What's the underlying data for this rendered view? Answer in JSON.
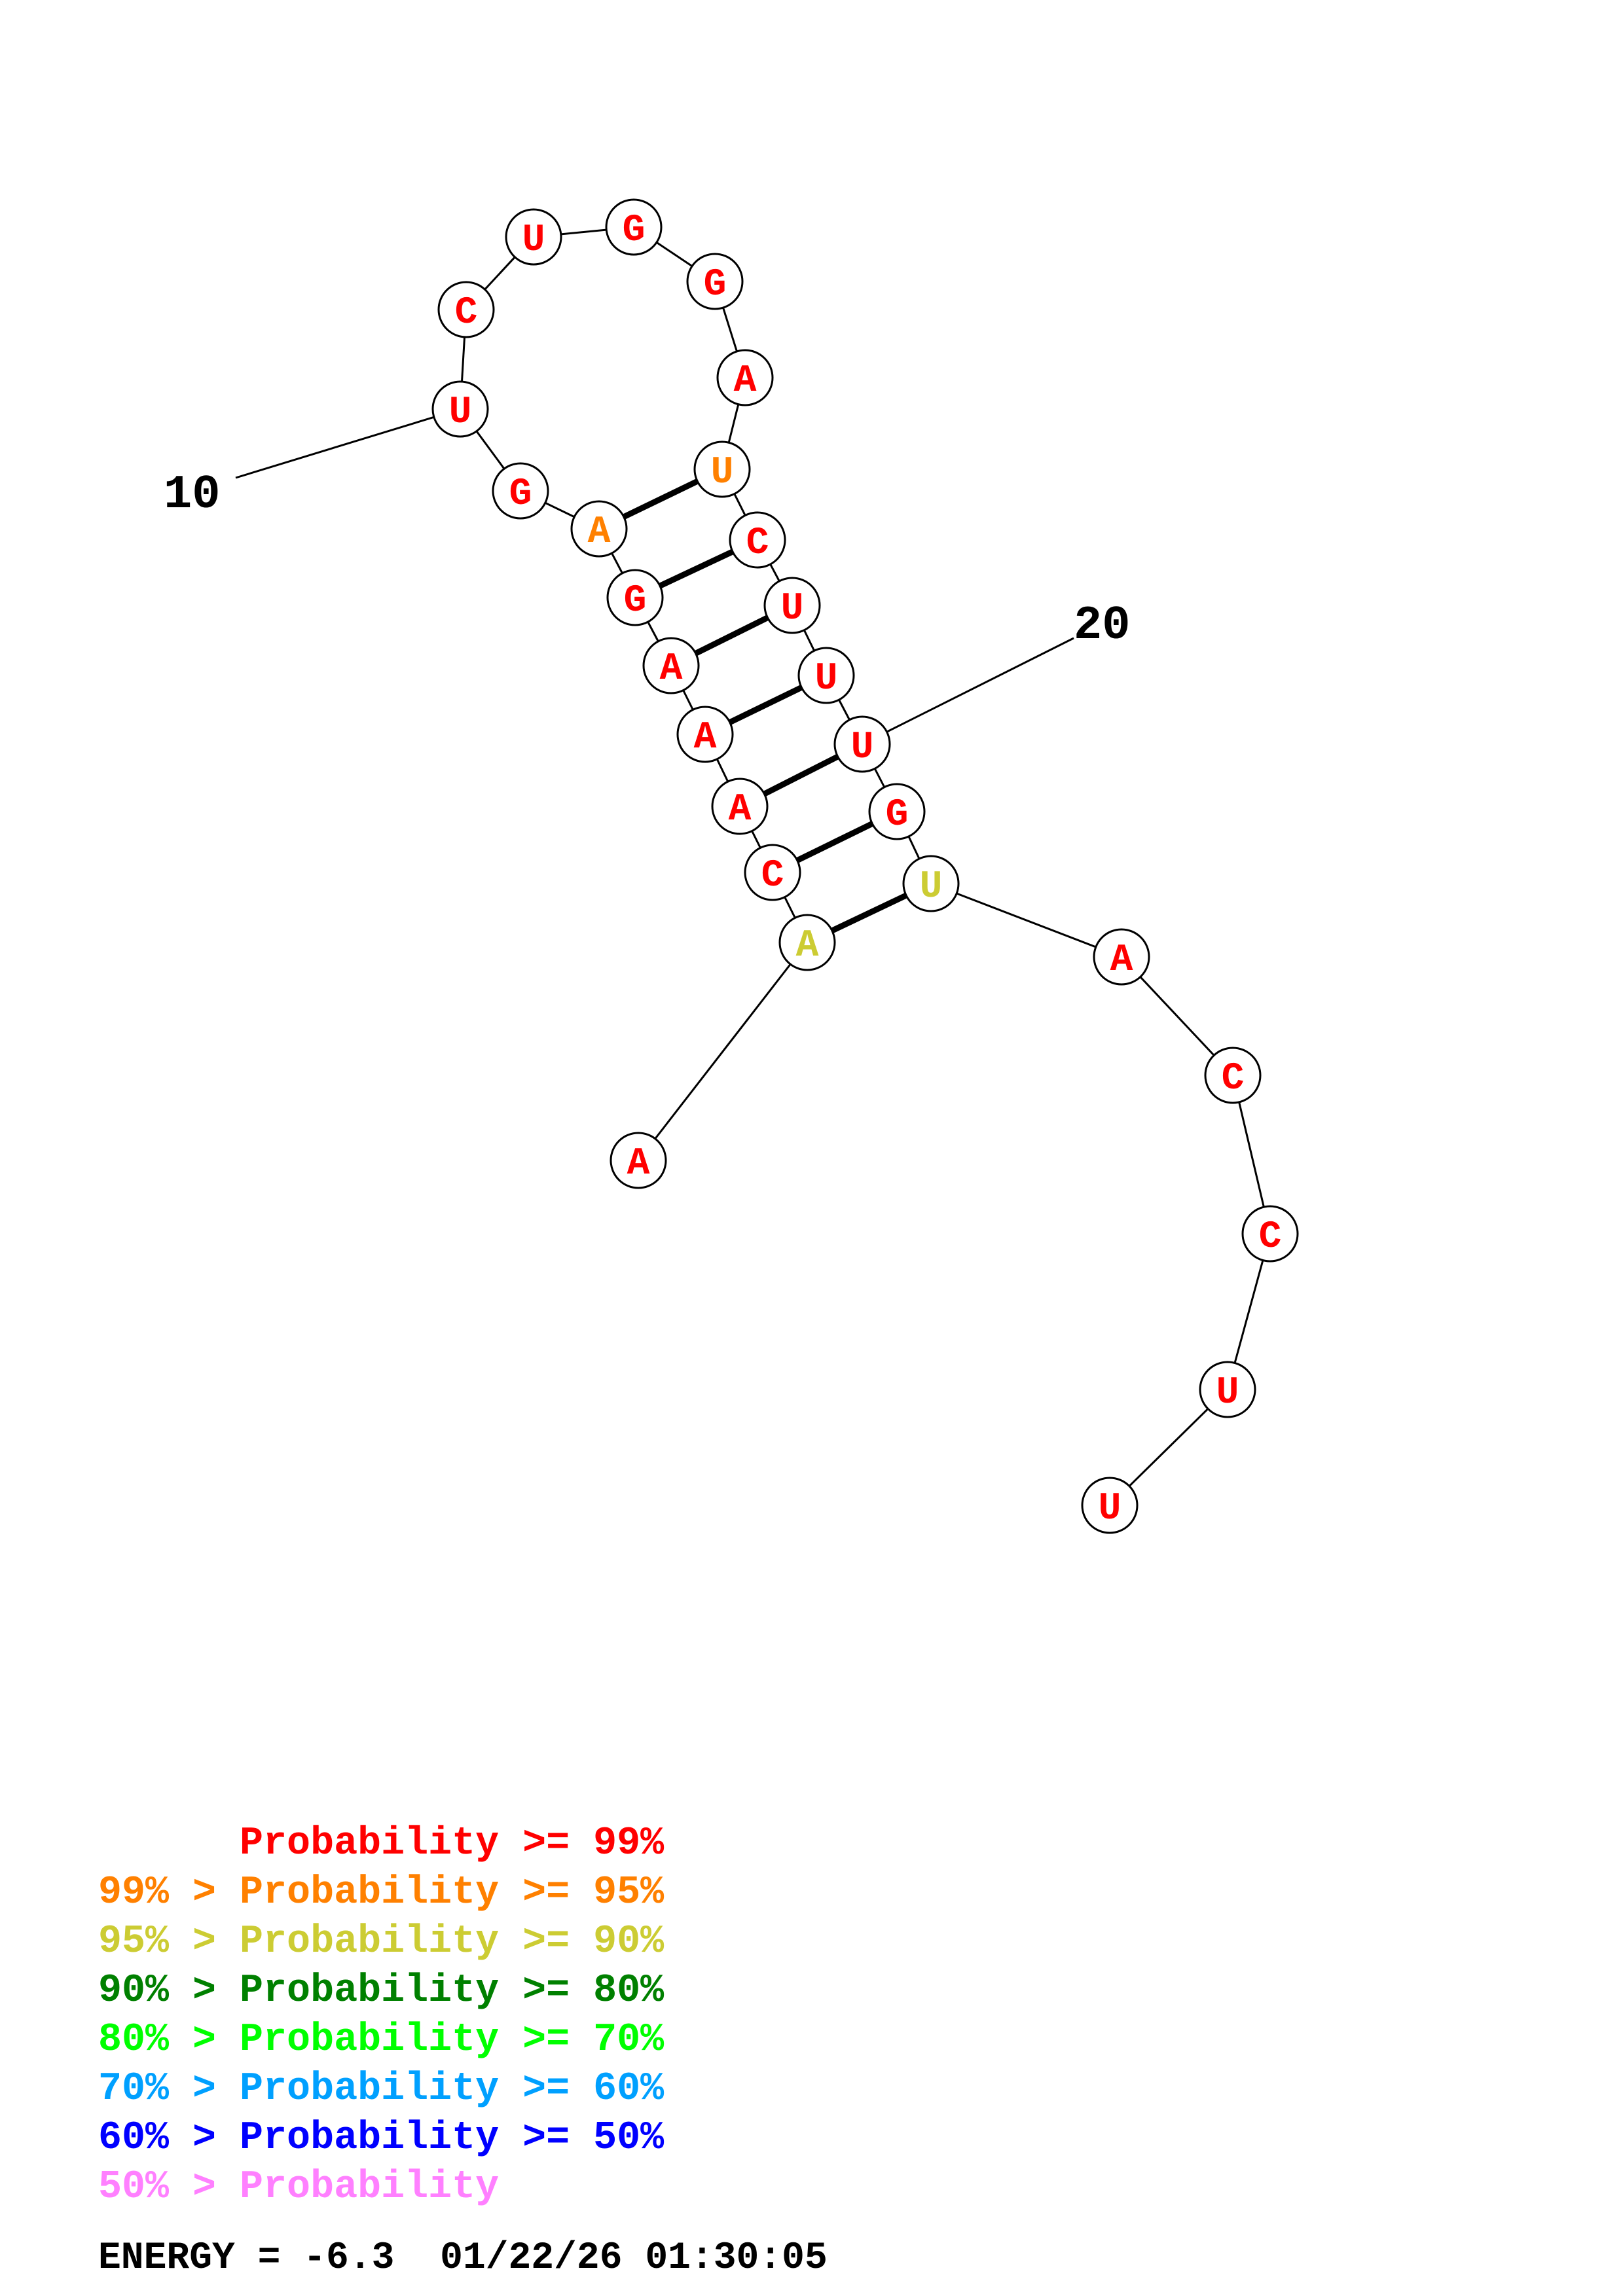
{
  "colors": {
    "p99": "#ff0000",
    "p95": "#ff8000",
    "p90": "#cccc33",
    "p80": "#008000",
    "p70": "#00ff00",
    "p60": "#00a0ff",
    "p50": "#0000ff",
    "plow": "#ff80ff"
  },
  "nucleotides": [
    {
      "n": 1,
      "base": "A",
      "color": "#ff0000"
    },
    {
      "n": 2,
      "base": "A",
      "color": "#cccc33"
    },
    {
      "n": 3,
      "base": "C",
      "color": "#ff0000"
    },
    {
      "n": 4,
      "base": "A",
      "color": "#ff0000"
    },
    {
      "n": 5,
      "base": "A",
      "color": "#ff0000"
    },
    {
      "n": 6,
      "base": "A",
      "color": "#ff0000"
    },
    {
      "n": 7,
      "base": "G",
      "color": "#ff0000"
    },
    {
      "n": 8,
      "base": "A",
      "color": "#ff8000"
    },
    {
      "n": 9,
      "base": "G",
      "color": "#ff0000"
    },
    {
      "n": 10,
      "base": "U",
      "color": "#ff0000"
    },
    {
      "n": 11,
      "base": "C",
      "color": "#ff0000"
    },
    {
      "n": 12,
      "base": "U",
      "color": "#ff0000"
    },
    {
      "n": 13,
      "base": "G",
      "color": "#ff0000"
    },
    {
      "n": 14,
      "base": "G",
      "color": "#ff0000"
    },
    {
      "n": 15,
      "base": "A",
      "color": "#ff0000"
    },
    {
      "n": 16,
      "base": "U",
      "color": "#ff8000"
    },
    {
      "n": 17,
      "base": "C",
      "color": "#ff0000"
    },
    {
      "n": 18,
      "base": "U",
      "color": "#ff0000"
    },
    {
      "n": 19,
      "base": "U",
      "color": "#ff0000"
    },
    {
      "n": 20,
      "base": "U",
      "color": "#ff0000"
    },
    {
      "n": 21,
      "base": "G",
      "color": "#ff0000"
    },
    {
      "n": 22,
      "base": "U",
      "color": "#cccc33"
    },
    {
      "n": 23,
      "base": "A",
      "color": "#ff0000"
    },
    {
      "n": 24,
      "base": "C",
      "color": "#ff0000"
    },
    {
      "n": 25,
      "base": "C",
      "color": "#ff0000"
    },
    {
      "n": 26,
      "base": "U",
      "color": "#ff0000"
    },
    {
      "n": 27,
      "base": "U",
      "color": "#ff0000"
    }
  ],
  "pairs": [
    [
      2,
      22
    ],
    [
      3,
      21
    ],
    [
      4,
      20
    ],
    [
      5,
      19
    ],
    [
      6,
      18
    ],
    [
      7,
      17
    ],
    [
      8,
      16
    ]
  ],
  "index_labels": [
    {
      "n": 10,
      "text": "10"
    },
    {
      "n": 20,
      "text": "20"
    }
  ],
  "legend": [
    {
      "prefix": "    ",
      "text": "Probability >= 99%",
      "color": "#ff0000"
    },
    {
      "prefix": "99% > ",
      "text": "Probability >= 95%",
      "color": "#ff8000"
    },
    {
      "prefix": "95% > ",
      "text": "Probability >= 90%",
      "color": "#cccc33"
    },
    {
      "prefix": "90% > ",
      "text": "Probability >= 80%",
      "color": "#008000"
    },
    {
      "prefix": "80% > ",
      "text": "Probability >= 70%",
      "color": "#00ff00"
    },
    {
      "prefix": "70% > ",
      "text": "Probability >= 60%",
      "color": "#00a0ff"
    },
    {
      "prefix": "60% > ",
      "text": "Probability >= 50%",
      "color": "#0000ff"
    },
    {
      "prefix": "50% > ",
      "text": "Probability",
      "color": "#ff80ff"
    }
  ],
  "footer": {
    "energy": "ENERGY = -6.3  01/22/26 01:30:05"
  }
}
